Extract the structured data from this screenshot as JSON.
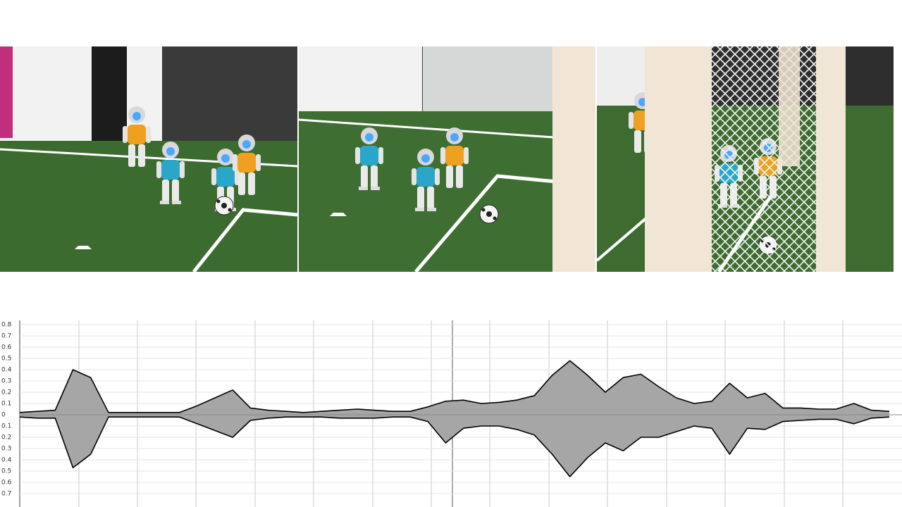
{
  "chart_data": {
    "type": "waveform",
    "series": [
      {
        "color": "#000000",
        "values": [
          0.02,
          0.03,
          0.04,
          0.4,
          0.33,
          0.02,
          0.02,
          0.02,
          0.02,
          0.02,
          0.08,
          0.15,
          0.22,
          0.06,
          0.04,
          0.03,
          0.02,
          0.03,
          0.04,
          0.05,
          0.04,
          0.03,
          0.03,
          0.07,
          0.12,
          0.13,
          0.1,
          0.11,
          0.13,
          0.17,
          0.35,
          0.48,
          0.35,
          0.2,
          0.33,
          0.36,
          0.25,
          0.15,
          0.1,
          0.12,
          0.28,
          0.15,
          0.19,
          0.06,
          0.06,
          0.05,
          0.05,
          0.1,
          0.04,
          0.03
        ]
      },
      {
        "color": "#000000",
        "values": [
          -0.02,
          -0.03,
          -0.03,
          -0.47,
          -0.35,
          -0.02,
          -0.02,
          -0.02,
          -0.02,
          -0.02,
          -0.08,
          -0.14,
          -0.2,
          -0.05,
          -0.03,
          -0.02,
          -0.02,
          -0.02,
          -0.03,
          -0.03,
          -0.03,
          -0.02,
          -0.02,
          -0.06,
          -0.25,
          -0.12,
          -0.1,
          -0.1,
          -0.13,
          -0.18,
          -0.35,
          -0.55,
          -0.38,
          -0.25,
          -0.32,
          -0.2,
          -0.2,
          -0.15,
          -0.1,
          -0.12,
          -0.35,
          -0.12,
          -0.13,
          -0.06,
          -0.05,
          -0.04,
          -0.04,
          -0.08,
          -0.03,
          -0.02
        ]
      }
    ],
    "fill_color": "#a6a6a6",
    "ylim": [
      -0.8,
      0.8
    ],
    "yticks": [
      0.8,
      0.7,
      0.6,
      0.5,
      0.4,
      0.3,
      0.2,
      0.1,
      0.0,
      {
        "value": -0.1,
        "label": "0.1"
      },
      {
        "value": -0.2,
        "label": "0.2"
      },
      {
        "value": -0.3,
        "label": "0.3"
      },
      {
        "value": -0.4,
        "label": "0.4"
      },
      {
        "value": -0.5,
        "label": "0.5"
      },
      {
        "value": -0.6,
        "label": "0.6"
      },
      {
        "value": -0.7,
        "label": "0.7"
      }
    ],
    "grid": true
  }
}
